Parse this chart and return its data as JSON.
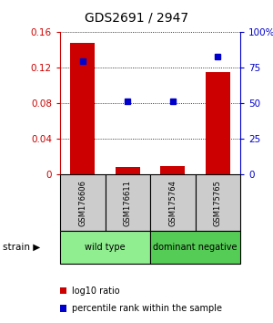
{
  "title": "GDS2691 / 2947",
  "samples": [
    "GSM176606",
    "GSM176611",
    "GSM175764",
    "GSM175765"
  ],
  "log10_ratio": [
    0.148,
    0.008,
    0.009,
    0.115
  ],
  "percentile_rank": [
    0.795,
    0.515,
    0.515,
    0.83
  ],
  "ylim_left": [
    0,
    0.16
  ],
  "ylim_right": [
    0,
    1.0
  ],
  "yticks_left": [
    0,
    0.04,
    0.08,
    0.12,
    0.16
  ],
  "yticks_right": [
    0,
    0.25,
    0.5,
    0.75,
    1.0
  ],
  "ytick_labels_left": [
    "0",
    "0.04",
    "0.08",
    "0.12",
    "0.16"
  ],
  "ytick_labels_right": [
    "0",
    "25",
    "50",
    "75",
    "100%"
  ],
  "bar_color": "#cc0000",
  "dot_color": "#0000cc",
  "groups": [
    {
      "label": "wild type",
      "indices": [
        0,
        1
      ],
      "color": "#90ee90"
    },
    {
      "label": "dominant negative",
      "indices": [
        2,
        3
      ],
      "color": "#55cc55"
    }
  ],
  "strain_label": "strain",
  "legend_bar": "log10 ratio",
  "legend_dot": "percentile rank within the sample",
  "sample_box_color": "#cccccc",
  "bg_color": "#ffffff"
}
